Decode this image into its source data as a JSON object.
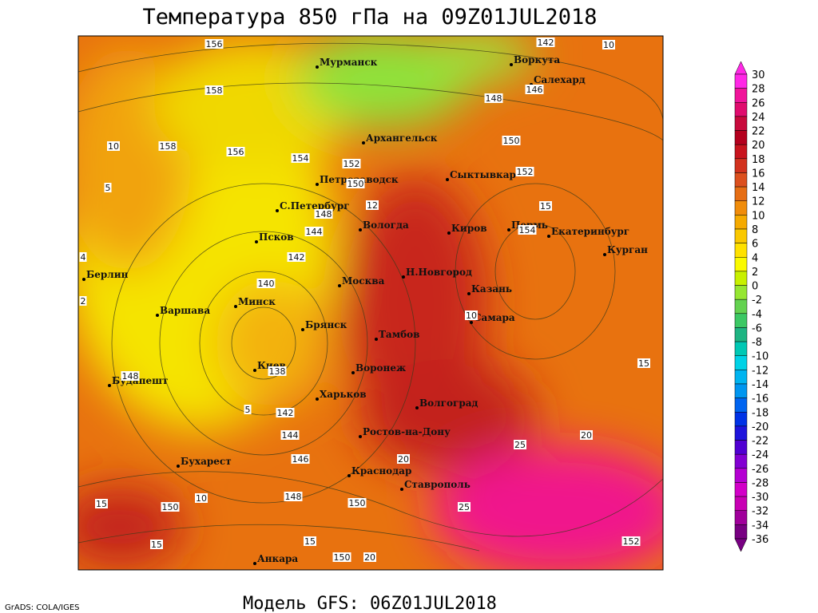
{
  "header": {
    "title": "Температура 850 гПа на 09Z01JUL2018"
  },
  "footer": {
    "model": "Модель GFS: 06Z01JUL2018",
    "credit": "GrADS: COLA/IGES"
  },
  "cities": [
    "Мурманск",
    "Воркута",
    "Салехард",
    "Архангельск",
    "Петрозаводск",
    "Сыктывкар",
    "С.Петербург",
    "Вологда",
    "Киров",
    "Пермь",
    "Екатеринбург",
    "Курган",
    "Псков",
    "Берлин",
    "Н.Новгород",
    "Москва",
    "Казань",
    "Варшава",
    "Минск",
    "Самара",
    "Брянск",
    "Тамбов",
    "Киев",
    "Воронеж",
    "Будапешт",
    "Харьков",
    "Волгоград",
    "Ростов-на-Дону",
    "Бухарест",
    "Краснодар",
    "Ставрополь",
    "Анкара"
  ],
  "contour_labels": [
    "156",
    "158",
    "10",
    "158",
    "156",
    "154",
    "152",
    "150",
    "5",
    "148",
    "144",
    "142",
    "140",
    "4",
    "2",
    "138",
    "148",
    "5",
    "142",
    "144",
    "146",
    "148",
    "150",
    "150",
    "15",
    "10",
    "15",
    "15",
    "150",
    "20",
    "142",
    "10",
    "148",
    "146",
    "150",
    "152",
    "15",
    "154",
    "10",
    "15",
    "20",
    "25",
    "20",
    "25",
    "152",
    "12"
  ],
  "colorbar": {
    "labels": [
      "30",
      "28",
      "26",
      "24",
      "22",
      "20",
      "18",
      "16",
      "14",
      "12",
      "10",
      "8",
      "6",
      "4",
      "2",
      "0",
      "-2",
      "-4",
      "-6",
      "-8",
      "-10",
      "-12",
      "-14",
      "-16",
      "-18",
      "-20",
      "-22",
      "-24",
      "-26",
      "-28",
      "-30",
      "-32",
      "-34",
      "-36"
    ],
    "colors": [
      "#ff28e6",
      "#f0149a",
      "#e00c6e",
      "#c80a3c",
      "#b4001e",
      "#c8141e",
      "#d2321e",
      "#dc501e",
      "#e66e14",
      "#f08c0a",
      "#f5aa00",
      "#fac800",
      "#ffe100",
      "#fafa00",
      "#c8f000",
      "#96e632",
      "#64d250",
      "#3cc864",
      "#1eb482",
      "#00c8b4",
      "#00d2e6",
      "#00b4f0",
      "#0096f0",
      "#0064f0",
      "#0032e6",
      "#1e14dc",
      "#5000d2",
      "#8200d2",
      "#b400d2",
      "#d200c8",
      "#c800b4",
      "#a0009b",
      "#780082"
    ]
  }
}
